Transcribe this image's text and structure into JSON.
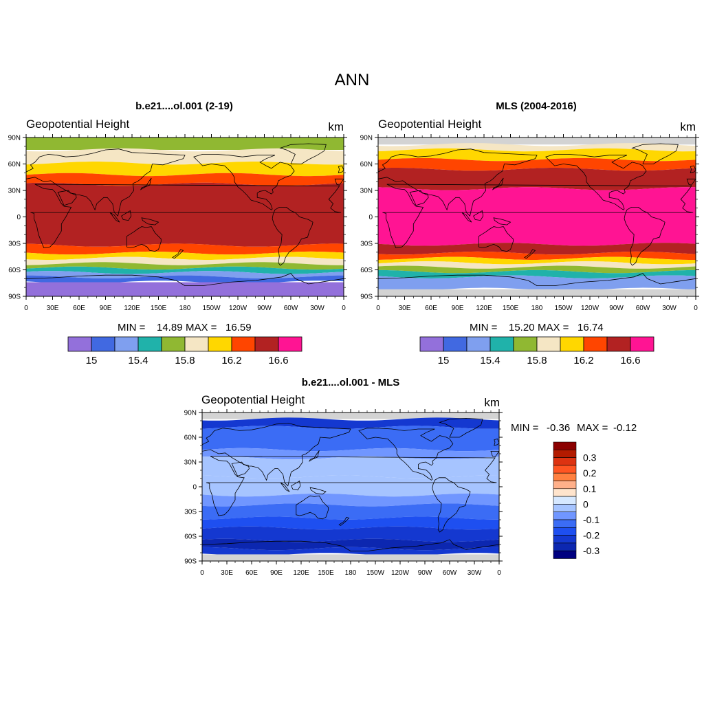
{
  "figure": {
    "title": "ANN"
  },
  "lat_ticks": [
    "90N",
    "60N",
    "30N",
    "0",
    "30S",
    "60S",
    "90S"
  ],
  "lon_ticks": [
    "0",
    "30E",
    "60E",
    "90E",
    "120E",
    "150E",
    "180",
    "150W",
    "120W",
    "90W",
    "60W",
    "30W",
    "0"
  ],
  "panels": [
    {
      "id": "model",
      "title": "b.e21....ol.001 (2-19)",
      "variable": "Geopotential Height",
      "units": "km",
      "min_label": "MIN =",
      "min": "14.89",
      "max_label": "MAX =",
      "max": "16.59",
      "levels": [
        14.9,
        15.1,
        15.3,
        15.5,
        15.7,
        15.9,
        16.1,
        16.3,
        16.5,
        16.7
      ],
      "colorbar": {
        "colors": [
          "#9370db",
          "#4169e1",
          "#7f9fef",
          "#20b2aa",
          "#90b832",
          "#f5e6c4",
          "#ffd700",
          "#ff4500",
          "#b22222",
          "#ff1493"
        ],
        "labels": [
          "15",
          "15.4",
          "15.8",
          "16.2",
          "16.6"
        ]
      },
      "bands_desc": "latitude band edges (deg) north to south with level index",
      "bands": [
        {
          "from": 90,
          "to": 76,
          "level": 4
        },
        {
          "from": 76,
          "to": 61,
          "level": 5
        },
        {
          "from": 61,
          "to": 48,
          "level": 6
        },
        {
          "from": 48,
          "to": 37,
          "level": 7
        },
        {
          "from": 37,
          "to": -32,
          "level": 8
        },
        {
          "from": -32,
          "to": -41,
          "level": 7
        },
        {
          "from": -41,
          "to": -47,
          "level": 6
        },
        {
          "from": -47,
          "to": -53,
          "level": 5
        },
        {
          "from": -53,
          "to": -58,
          "level": 4
        },
        {
          "from": -58,
          "to": -63,
          "level": 3
        },
        {
          "from": -63,
          "to": -68,
          "level": 2
        },
        {
          "from": -68,
          "to": -74,
          "level": 1
        },
        {
          "from": -74,
          "to": -90,
          "level": 0
        }
      ]
    },
    {
      "id": "obs",
      "title": "MLS (2004-2016)",
      "variable": "Geopotential Height",
      "units": "km",
      "min_label": "MIN =",
      "min": "15.20",
      "max_label": "MAX =",
      "max": "16.74",
      "levels": [
        14.9,
        15.1,
        15.3,
        15.5,
        15.7,
        15.9,
        16.1,
        16.3,
        16.5,
        16.7
      ],
      "colorbar": {
        "colors": [
          "#9370db",
          "#4169e1",
          "#7f9fef",
          "#20b2aa",
          "#90b832",
          "#f5e6c4",
          "#ffd700",
          "#ff4500",
          "#b22222",
          "#ff1493"
        ],
        "labels": [
          "15",
          "15.4",
          "15.8",
          "16.2",
          "16.6"
        ]
      },
      "bands": [
        {
          "from": 90,
          "to": 82,
          "level": -1
        },
        {
          "from": 82,
          "to": 76,
          "level": 5
        },
        {
          "from": 76,
          "to": 65,
          "level": 6
        },
        {
          "from": 65,
          "to": 54,
          "level": 7
        },
        {
          "from": 54,
          "to": 32,
          "level": 8
        },
        {
          "from": 32,
          "to": -31,
          "level": 9
        },
        {
          "from": -31,
          "to": -41,
          "level": 8
        },
        {
          "from": -41,
          "to": -47,
          "level": 7
        },
        {
          "from": -47,
          "to": -52,
          "level": 6
        },
        {
          "from": -52,
          "to": -57,
          "level": 5
        },
        {
          "from": -57,
          "to": -62,
          "level": 4
        },
        {
          "from": -62,
          "to": -68,
          "level": 3
        },
        {
          "from": -68,
          "to": -82,
          "level": 2
        },
        {
          "from": -82,
          "to": -90,
          "level": -1
        }
      ]
    },
    {
      "id": "diff",
      "title": "b.e21....ol.001 - MLS",
      "variable": "Geopotential Height",
      "units": "km",
      "min_label": "MIN =",
      "min": "-0.36",
      "max_label": "MAX =",
      "max": "-0.12",
      "levels": [
        -0.35,
        -0.325,
        -0.3,
        -0.275,
        -0.25,
        -0.225,
        -0.2,
        -0.175,
        -0.15,
        -0.125
      ],
      "colorbar": {
        "colors": [
          "#8b0000",
          "#b31b00",
          "#dd3311",
          "#ff5522",
          "#ff8040",
          "#ffb08a",
          "#ffe4cc",
          "#d6e8ff",
          "#a6c4ff",
          "#7096ff",
          "#3b6cf5",
          "#1e4ff0",
          "#1438d0",
          "#0c27b0",
          "#000080"
        ],
        "labels": [
          "0.3",
          "0.2",
          "0.1",
          "0",
          "-0.1",
          "-0.2",
          "-0.3"
        ]
      },
      "bands": [
        {
          "from": 90,
          "to": 82,
          "level": -1
        },
        {
          "from": 82,
          "to": 72,
          "level": 12
        },
        {
          "from": 72,
          "to": 45,
          "level": 10
        },
        {
          "from": 45,
          "to": 35,
          "level": 9
        },
        {
          "from": 35,
          "to": 12,
          "level": 8
        },
        {
          "from": 12,
          "to": -10,
          "level": 8
        },
        {
          "from": -10,
          "to": -22,
          "level": 9
        },
        {
          "from": -22,
          "to": -38,
          "level": 10
        },
        {
          "from": -38,
          "to": -50,
          "level": 11
        },
        {
          "from": -50,
          "to": -65,
          "level": 12
        },
        {
          "from": -65,
          "to": -75,
          "level": 13
        },
        {
          "from": -75,
          "to": -82,
          "level": 12
        },
        {
          "from": -82,
          "to": -90,
          "level": -1
        }
      ]
    }
  ]
}
